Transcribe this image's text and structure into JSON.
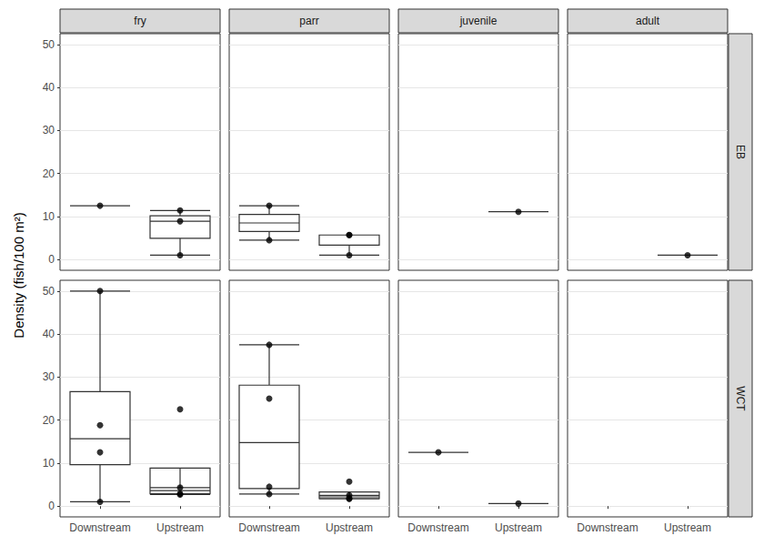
{
  "chart_data": {
    "type": "boxplot",
    "ylabel": "Density (fish/100 m²)",
    "categories": [
      "Downstream",
      "Upstream"
    ],
    "columns": [
      "fry",
      "parr",
      "juvenile",
      "adult"
    ],
    "rows": [
      "EB",
      "WCT"
    ],
    "ylim": [
      -2.5,
      52.5
    ],
    "yticks": [
      0,
      10,
      20,
      30,
      40,
      50
    ],
    "grid": true,
    "color": "#333333",
    "marker": "circle",
    "panels": [
      {
        "row": "EB",
        "column": "fry",
        "values": [
          [
            12.5
          ],
          [
            11.4,
            8.9,
            1.0
          ]
        ]
      },
      {
        "row": "EB",
        "column": "parr",
        "values": [
          [
            12.5,
            4.5
          ],
          [
            5.7,
            5.7,
            1.0
          ]
        ]
      },
      {
        "row": "EB",
        "column": "juvenile",
        "values": [
          [],
          [
            11.1
          ]
        ]
      },
      {
        "row": "EB",
        "column": "adult",
        "values": [
          [],
          [
            1.0
          ]
        ]
      },
      {
        "row": "WCT",
        "column": "fry",
        "values": [
          [
            50,
            18.8,
            12.5,
            1.0
          ],
          [
            22.5,
            4.3,
            2.9,
            2.7
          ]
        ]
      },
      {
        "row": "WCT",
        "column": "parr",
        "values": [
          [
            37.5,
            25,
            4.5,
            2.8
          ],
          [
            5.7,
            2.5,
            1.8,
            1.7
          ]
        ]
      },
      {
        "row": "WCT",
        "column": "juvenile",
        "values": [
          [
            12.5
          ],
          [
            0.6
          ]
        ]
      },
      {
        "row": "WCT",
        "column": "adult",
        "values": [
          [],
          []
        ]
      }
    ]
  }
}
